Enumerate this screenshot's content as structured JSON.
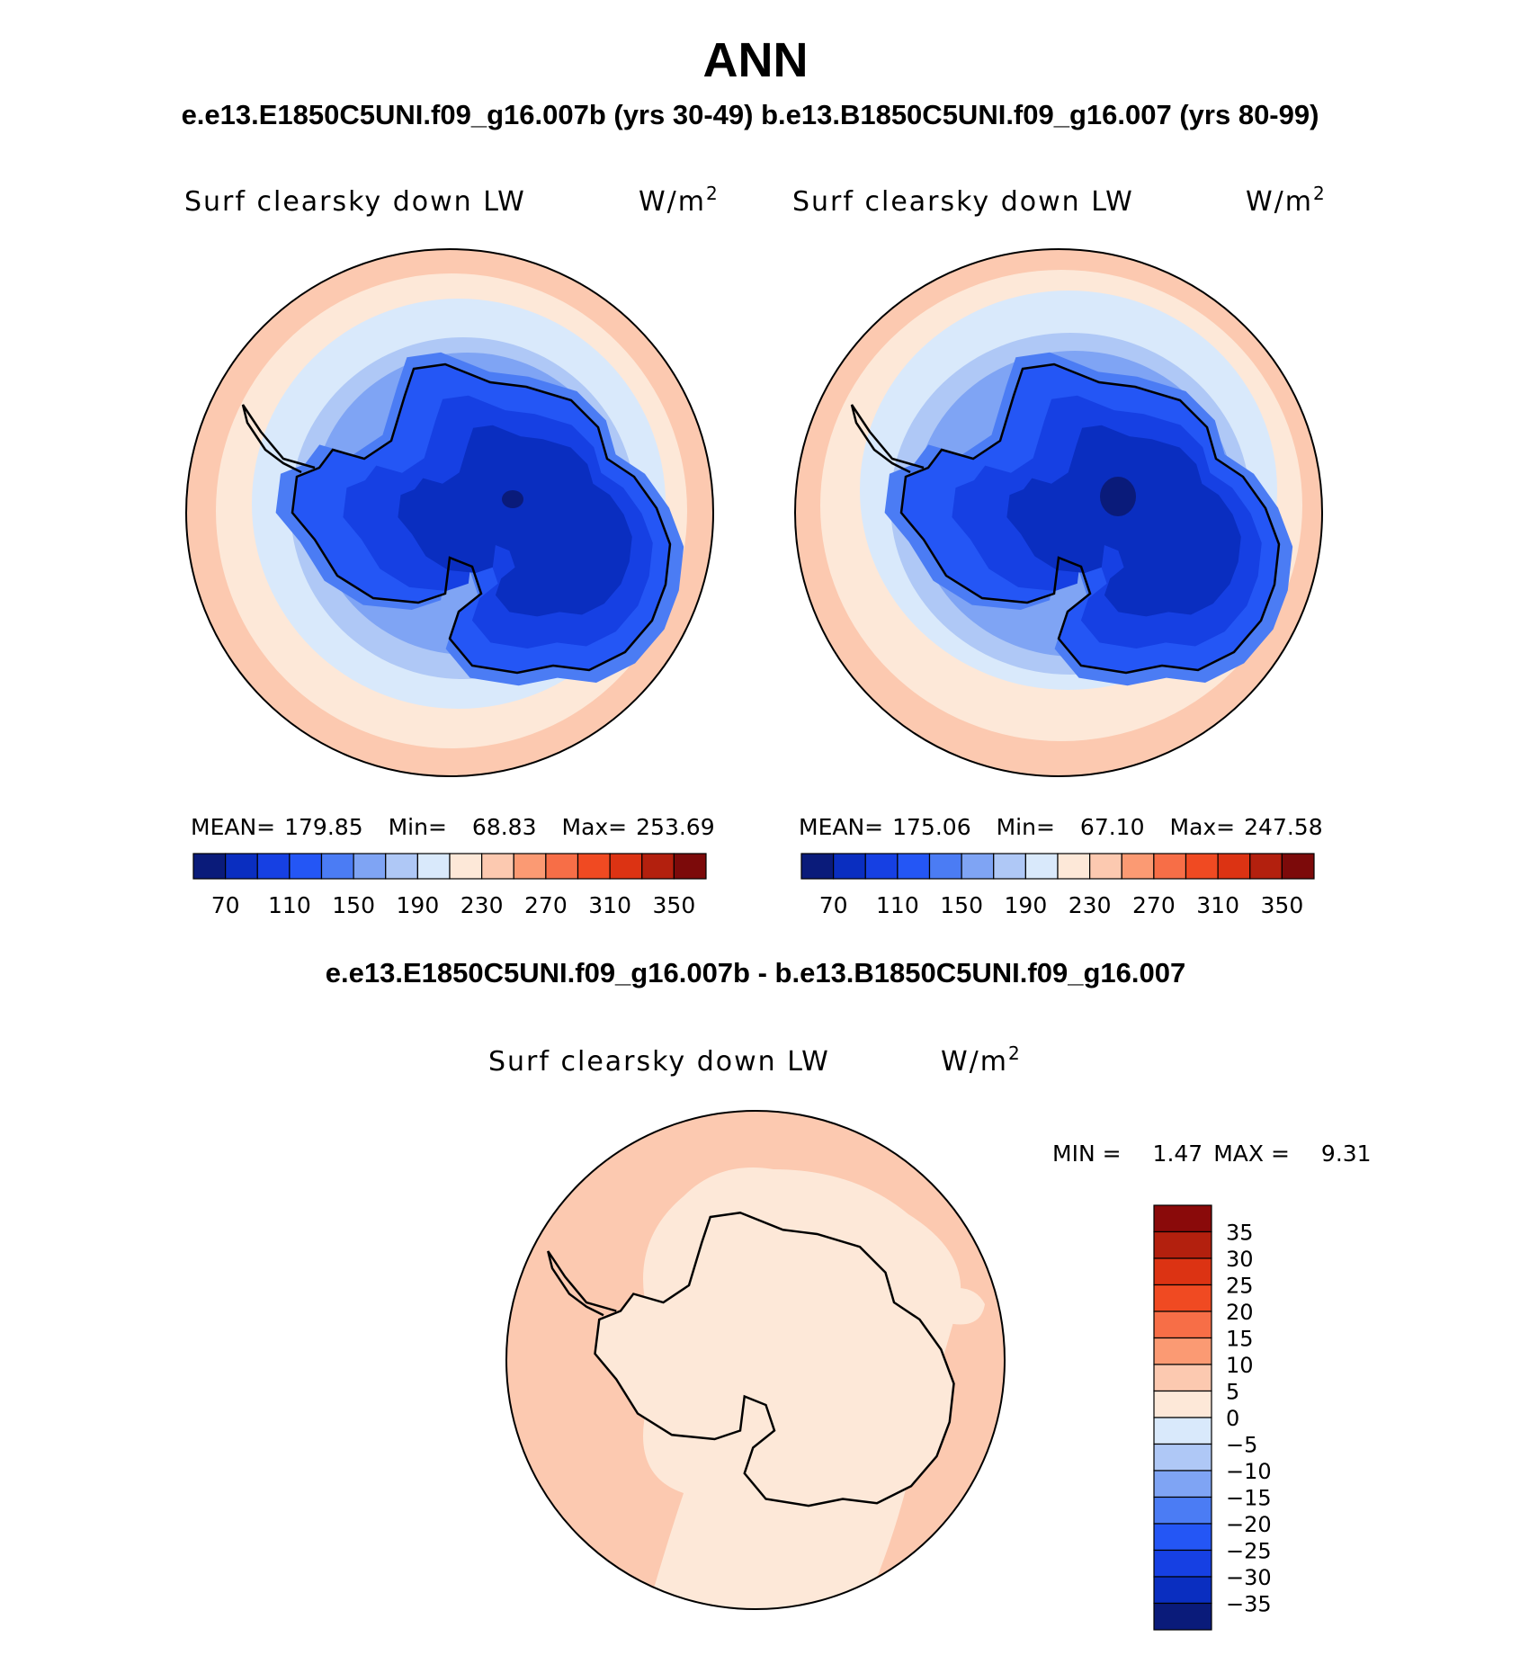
{
  "page": {
    "title": "ANN",
    "subtitle": "e.e13.E1850C5UNI.f09_g16.007b (yrs 30-49)  b.e13.B1850C5UNI.f09_g16.007 (yrs 80-99)",
    "diff_title": "e.e13.E1850C5UNI.f09_g16.007b - b.e13.B1850C5UNI.f09_g16.007"
  },
  "colors": {
    "main_scale": [
      "#0a1b7a",
      "#0a2ec0",
      "#1640e3",
      "#2456f5",
      "#4b7cf4",
      "#7fa4f4",
      "#afc8f6",
      "#d9e9fb",
      "#fde8d8",
      "#fcc9b0",
      "#fb9a73",
      "#f76e47",
      "#f04a22",
      "#dc3313",
      "#b3200e",
      "#7c0a0a"
    ],
    "diff_scale": [
      "#0a1b7a",
      "#0a2ec0",
      "#1640e3",
      "#2456f5",
      "#4b7cf4",
      "#7fa4f4",
      "#afc8f6",
      "#d9e9fb",
      "#fde8d8",
      "#fcc9b0",
      "#fb9a73",
      "#f76e47",
      "#f04a22",
      "#dc3313",
      "#b3200e",
      "#8a0a0a"
    ]
  },
  "chart_data": [
    {
      "type": "heatmap",
      "projection": "south polar stereographic",
      "title": "Surf clearsky down LW",
      "units": "W/m",
      "units_sup": "2",
      "stats": {
        "mean_label": "MEAN=",
        "mean": "179.85",
        "min_label": "Min=",
        "min": "68.83",
        "max_label": "Max=",
        "max": "253.69"
      },
      "colorbar": {
        "orientation": "horizontal",
        "tick_labels": [
          "70",
          "110",
          "150",
          "190",
          "230",
          "270",
          "310",
          "350"
        ]
      },
      "contour_levels": [
        60,
        70,
        90,
        110,
        130,
        150,
        170,
        190,
        210,
        230,
        250,
        270,
        290,
        310,
        330,
        350
      ]
    },
    {
      "type": "heatmap",
      "projection": "south polar stereographic",
      "title": "Surf clearsky down LW",
      "units": "W/m",
      "units_sup": "2",
      "stats": {
        "mean_label": "MEAN=",
        "mean": "175.06",
        "min_label": "Min=",
        "min": "67.10",
        "max_label": "Max=",
        "max": "247.58"
      },
      "colorbar": {
        "orientation": "horizontal",
        "tick_labels": [
          "70",
          "110",
          "150",
          "190",
          "230",
          "270",
          "310",
          "350"
        ]
      },
      "contour_levels": [
        60,
        70,
        90,
        110,
        130,
        150,
        170,
        190,
        210,
        230,
        250,
        270,
        290,
        310,
        330,
        350
      ]
    },
    {
      "type": "heatmap",
      "projection": "south polar stereographic",
      "title": "Surf clearsky down LW",
      "units": "W/m",
      "units_sup": "2",
      "stats": {
        "min_label": "MIN =",
        "min": "1.47",
        "max_label": "MAX =",
        "max": "9.31"
      },
      "colorbar": {
        "orientation": "vertical",
        "tick_labels": [
          "35",
          "30",
          "25",
          "20",
          "15",
          "10",
          "5",
          "0",
          "−5",
          "−10",
          "−15",
          "−20",
          "−25",
          "−30",
          "−35"
        ]
      },
      "contour_levels": [
        -35,
        -30,
        -25,
        -20,
        -15,
        -10,
        -5,
        0,
        5,
        10,
        15,
        20,
        25,
        30,
        35
      ]
    }
  ]
}
